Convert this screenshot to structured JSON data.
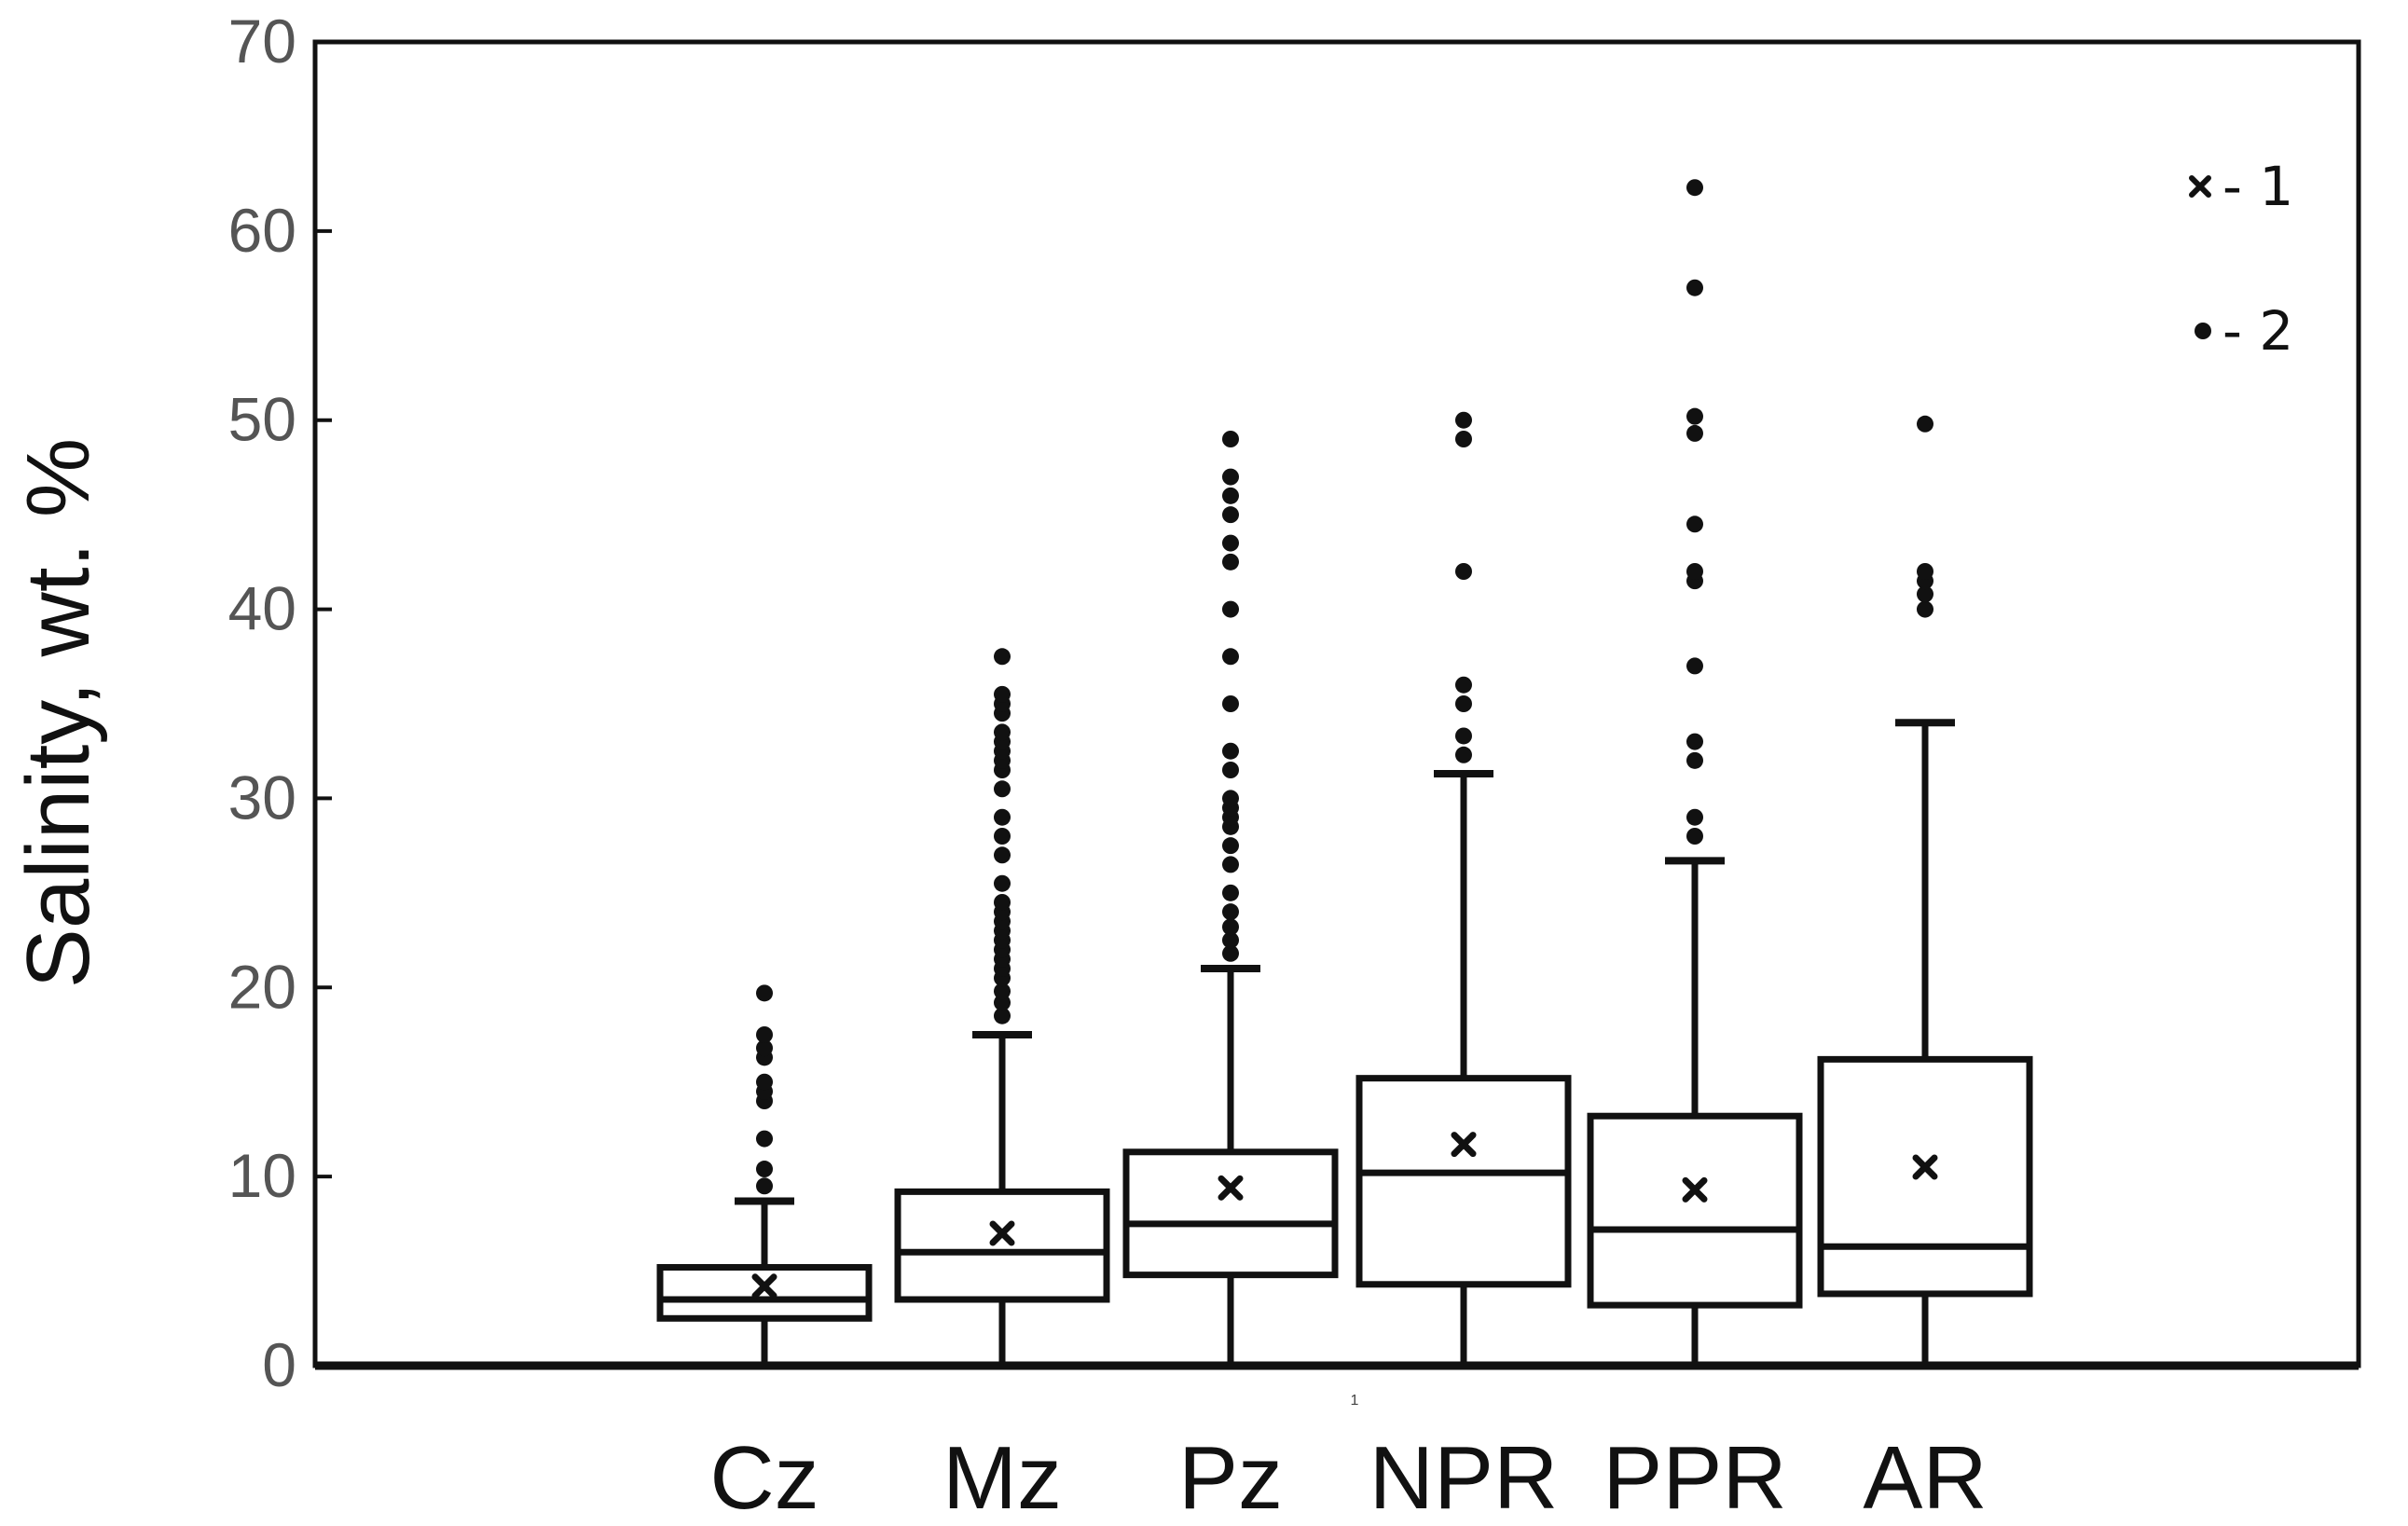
{
  "chart_data": {
    "type": "box",
    "title": "",
    "xlabel": "",
    "ylabel": "Salinity, wt. %",
    "ylim": [
      0,
      70
    ],
    "yticks": [
      0,
      10,
      20,
      30,
      40,
      50,
      60,
      70
    ],
    "grid": false,
    "legend_position": "top-right",
    "legend": [
      {
        "marker": "cross",
        "label": "- 1"
      },
      {
        "marker": "dot",
        "label": "- 2"
      }
    ],
    "center_note": "1",
    "categories": [
      "Cz",
      "Mz",
      "Pz",
      "NPR",
      "PPR",
      "AR"
    ],
    "boxes": [
      {
        "name": "Cz",
        "min": 0,
        "q1": 2.5,
        "median": 3.5,
        "q3": 5.2,
        "max": 8.7,
        "mean": 4.2,
        "outliers": [
          9.5,
          10.4,
          12,
          14,
          14.5,
          15,
          16.3,
          16.8,
          17.5,
          19.7
        ]
      },
      {
        "name": "Mz",
        "min": 0,
        "q1": 3.5,
        "median": 6.0,
        "q3": 9.2,
        "max": 17.5,
        "mean": 7.0,
        "outliers": [
          18.5,
          19.2,
          19.8,
          20.5,
          21,
          21.5,
          22,
          22.5,
          23,
          23.5,
          24,
          24.5,
          25.5,
          27,
          28,
          29,
          30.5,
          31.5,
          32,
          32.5,
          33,
          33.5,
          34.5,
          35,
          35.5,
          37.5
        ]
      },
      {
        "name": "Pz",
        "min": 0,
        "q1": 4.8,
        "median": 7.5,
        "q3": 11.3,
        "max": 21.0,
        "mean": 9.4,
        "outliers": [
          21.8,
          22.5,
          23.2,
          24,
          25,
          26.5,
          27.5,
          28.5,
          29,
          29.5,
          30,
          31.5,
          32.5,
          35,
          37.5,
          40,
          42.5,
          43.5,
          45,
          46,
          47,
          49
        ]
      },
      {
        "name": "NPR",
        "min": 0,
        "q1": 4.3,
        "median": 10.2,
        "q3": 15.2,
        "max": 31.3,
        "mean": 11.7,
        "outliers": [
          32.3,
          33.3,
          35,
          36,
          42,
          49,
          50
        ]
      },
      {
        "name": "PPR",
        "min": 0,
        "q1": 3.2,
        "median": 7.2,
        "q3": 13.2,
        "max": 26.7,
        "mean": 9.3,
        "outliers": [
          28,
          29,
          32,
          33,
          37,
          41.5,
          42,
          44.5,
          49.3,
          50.2,
          57,
          62.3
        ]
      },
      {
        "name": "AR",
        "min": 0,
        "q1": 3.8,
        "median": 6.3,
        "q3": 16.2,
        "max": 34.0,
        "mean": 10.5,
        "outliers": [
          40,
          40.8,
          41.5,
          42,
          49.8
        ]
      }
    ]
  }
}
